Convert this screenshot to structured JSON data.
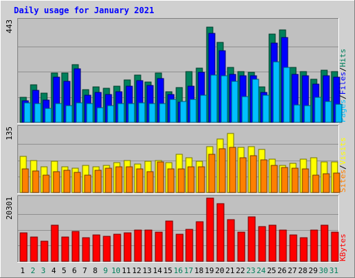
{
  "title": "Daily usage for January 2021",
  "colors": {
    "title": "#0000ff",
    "hits": "#00805c",
    "files": "#0000ff",
    "pages": "#00c0ff",
    "visits": "#ffff00",
    "sites": "#ff8000",
    "kbytes": "#ff0000",
    "panel_bg": "#c0c0c0",
    "frame_bg": "#d0d0d0",
    "weekday_label": "#000000",
    "weekend_label": "#00805c"
  },
  "chart_data": [
    {
      "type": "bar",
      "panel": "hits-files-pages",
      "ymax_label": "443",
      "ylim": [
        0,
        443
      ],
      "legend": [
        {
          "key": "pages",
          "label": "Pages"
        },
        {
          "key": "sep",
          "label": "/"
        },
        {
          "key": "files",
          "label": "Files"
        },
        {
          "key": "sep",
          "label": "/"
        },
        {
          "key": "hits",
          "label": "Hits"
        }
      ],
      "series": [
        {
          "name": "Hits",
          "values": [
            110,
            164,
            126,
            214,
            214,
            253,
            143,
            154,
            149,
            158,
            184,
            206,
            176,
            214,
            134,
            152,
            222,
            237,
            417,
            350,
            241,
            221,
            218,
            154,
            384,
            404,
            241,
            221,
            187,
            228,
            221
          ]
        },
        {
          "name": "Files",
          "values": [
            93,
            139,
            97,
            196,
            178,
            235,
            118,
            129,
            120,
            135,
            157,
            182,
            160,
            190,
            122,
            88,
            158,
            219,
            387,
            312,
            210,
            204,
            202,
            130,
            345,
            370,
            209,
            204,
            168,
            203,
            196
          ]
        },
        {
          "name": "Pages",
          "values": [
            85,
            81,
            61,
            82,
            74,
            85,
            81,
            65,
            73,
            81,
            81,
            84,
            81,
            82,
            100,
            90,
            99,
            119,
            205,
            204,
            179,
            112,
            189,
            117,
            263,
            240,
            75,
            72,
            108,
            91,
            80
          ]
        }
      ]
    },
    {
      "type": "bar",
      "panel": "visits-sites",
      "ymax_label": "135",
      "ylim": [
        0,
        135
      ],
      "legend": [
        {
          "key": "sites",
          "label": "Sites"
        },
        {
          "key": "sep",
          "label": "/"
        },
        {
          "key": "visits",
          "label": "Visits"
        }
      ],
      "series": [
        {
          "name": "Visits",
          "values": [
            76,
            67,
            54,
            65,
            54,
            51,
            57,
            53,
            57,
            62,
            67,
            60,
            65,
            67,
            63,
            80,
            73,
            66,
            96,
            112,
            123,
            94,
            96,
            90,
            69,
            56,
            61,
            70,
            73,
            64,
            64
          ]
        },
        {
          "name": "Sites",
          "values": [
            50,
            45,
            37,
            44,
            46,
            42,
            37,
            46,
            51,
            53,
            53,
            50,
            43,
            64,
            49,
            50,
            54,
            53,
            80,
            91,
            94,
            72,
            77,
            68,
            56,
            52,
            51,
            50,
            36,
            39,
            40
          ]
        }
      ]
    },
    {
      "type": "bar",
      "panel": "kbytes",
      "ymax_label": "20301",
      "ylim": [
        0,
        20301
      ],
      "legend": [
        {
          "key": "kbytes",
          "label": "KBytes"
        }
      ],
      "series": [
        {
          "name": "KBytes",
          "values": [
            9100,
            7800,
            6500,
            11700,
            7800,
            9700,
            7500,
            8400,
            8100,
            8700,
            9100,
            10000,
            10000,
            9400,
            13000,
            8700,
            10300,
            12700,
            20301,
            18500,
            13400,
            9400,
            14200,
            11200,
            11700,
            10000,
            8400,
            7500,
            10000,
            11500,
            9400
          ]
        }
      ]
    }
  ],
  "x_days": [
    {
      "label": "1",
      "weekend": false
    },
    {
      "label": "2",
      "weekend": true
    },
    {
      "label": "3",
      "weekend": true
    },
    {
      "label": "4",
      "weekend": false
    },
    {
      "label": "5",
      "weekend": false
    },
    {
      "label": "6",
      "weekend": false
    },
    {
      "label": "7",
      "weekend": false
    },
    {
      "label": "8",
      "weekend": false
    },
    {
      "label": "9",
      "weekend": true
    },
    {
      "label": "10",
      "weekend": true
    },
    {
      "label": "11",
      "weekend": false
    },
    {
      "label": "12",
      "weekend": false
    },
    {
      "label": "13",
      "weekend": false
    },
    {
      "label": "14",
      "weekend": false
    },
    {
      "label": "15",
      "weekend": false
    },
    {
      "label": "16",
      "weekend": true
    },
    {
      "label": "17",
      "weekend": true
    },
    {
      "label": "18",
      "weekend": false
    },
    {
      "label": "19",
      "weekend": false
    },
    {
      "label": "20",
      "weekend": false
    },
    {
      "label": "21",
      "weekend": false
    },
    {
      "label": "22",
      "weekend": false
    },
    {
      "label": "23",
      "weekend": true
    },
    {
      "label": "24",
      "weekend": true
    },
    {
      "label": "25",
      "weekend": false
    },
    {
      "label": "26",
      "weekend": false
    },
    {
      "label": "27",
      "weekend": false
    },
    {
      "label": "28",
      "weekend": false
    },
    {
      "label": "29",
      "weekend": false
    },
    {
      "label": "30",
      "weekend": true
    },
    {
      "label": "31",
      "weekend": true
    }
  ]
}
